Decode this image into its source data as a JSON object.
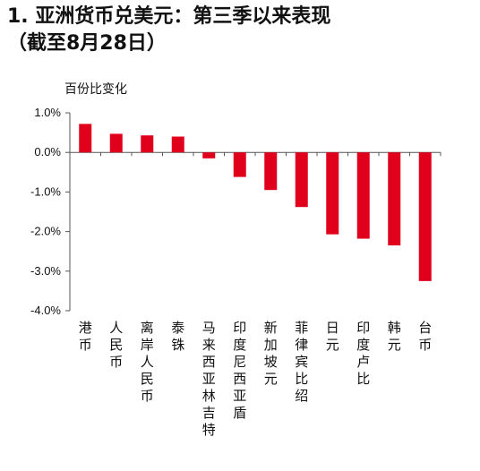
{
  "header": {
    "title_line1": "1. 亚洲货币兑美元：第三季以来表现",
    "title_line2": "（截至8月28日）"
  },
  "chart_data": {
    "type": "bar",
    "title": "1. 亚洲货币兑美元：第三季以来表现（截至8月28日）",
    "ylabel": "百份比变化",
    "ylim": [
      -4.0,
      1.0
    ],
    "yticks": [
      "1.0%",
      "0.0%",
      "-1.0%",
      "-2.0%",
      "-3.0%",
      "-4.0%"
    ],
    "categories": [
      "港币",
      "人民币",
      "离岸人民币",
      "泰铢",
      "马来西亚林吉特",
      "印度尼西亚盾",
      "新加坡元",
      "菲律宾比绍",
      "日元",
      "印度卢比",
      "韩元",
      "台币"
    ],
    "values": [
      0.72,
      0.47,
      0.43,
      0.4,
      -0.15,
      -0.62,
      -0.95,
      -1.38,
      -2.07,
      -2.18,
      -2.35,
      -3.25
    ],
    "bar_color": "#e0001b",
    "grid": false
  }
}
